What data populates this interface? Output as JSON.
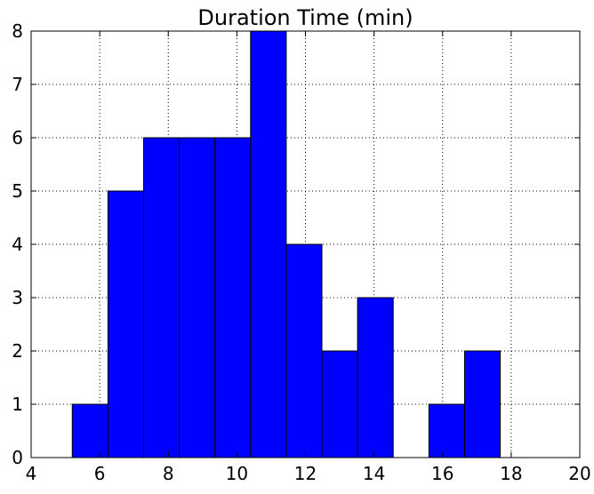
{
  "chart_data": {
    "type": "bar",
    "title": "Duration Time (min)",
    "xlabel": "",
    "ylabel": "",
    "xlim": [
      4,
      20
    ],
    "ylim": [
      0,
      8
    ],
    "x_ticks": [
      4,
      6,
      8,
      10,
      12,
      14,
      16,
      18,
      20
    ],
    "y_ticks": [
      0,
      1,
      2,
      3,
      4,
      5,
      6,
      7,
      8
    ],
    "grid": true,
    "bar_color": "#0000ff",
    "bins": [
      {
        "start": 5.2,
        "end": 6.24,
        "count": 1
      },
      {
        "start": 6.24,
        "end": 7.28,
        "count": 5
      },
      {
        "start": 7.28,
        "end": 8.32,
        "count": 6
      },
      {
        "start": 8.32,
        "end": 9.36,
        "count": 6
      },
      {
        "start": 9.36,
        "end": 10.4,
        "count": 6
      },
      {
        "start": 10.4,
        "end": 11.44,
        "count": 8
      },
      {
        "start": 11.44,
        "end": 12.48,
        "count": 4
      },
      {
        "start": 12.48,
        "end": 13.52,
        "count": 2
      },
      {
        "start": 13.52,
        "end": 14.56,
        "count": 3
      },
      {
        "start": 14.56,
        "end": 15.6,
        "count": 0
      },
      {
        "start": 15.6,
        "end": 16.64,
        "count": 1
      },
      {
        "start": 16.64,
        "end": 17.68,
        "count": 2
      }
    ]
  }
}
